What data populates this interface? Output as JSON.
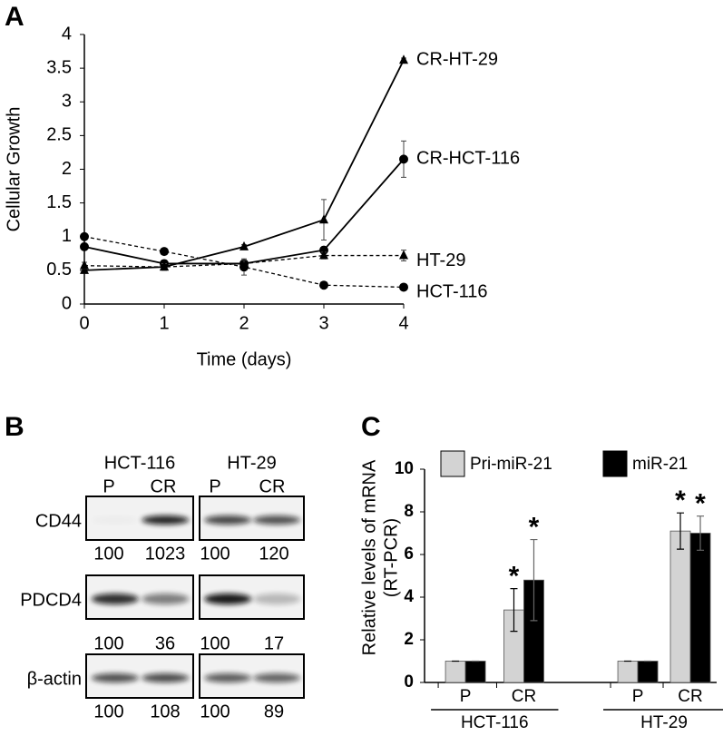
{
  "panel_labels": [
    "A",
    "B",
    "C"
  ],
  "chart_data": [
    {
      "type": "line",
      "ylabel": "Cellular Growth",
      "xlabel": "Time (days)",
      "x": [
        0,
        1,
        2,
        3,
        4
      ],
      "xlim": [
        0,
        4
      ],
      "xticks": [
        0,
        1,
        2,
        3,
        4
      ],
      "ylim": [
        0,
        4
      ],
      "yticks": [
        0,
        0.5,
        1,
        1.5,
        2,
        2.5,
        3,
        3.5,
        4
      ],
      "series": [
        {
          "name": "CR-HT-29",
          "color": "#000000",
          "marker": "triangle",
          "line": "solid",
          "values": [
            0.5,
            0.55,
            0.85,
            1.25,
            3.62
          ],
          "errors": [
            0.03,
            0.03,
            0.03,
            0.3,
            0.03
          ]
        },
        {
          "name": "CR-HCT-116",
          "color": "#000000",
          "marker": "circle",
          "line": "solid",
          "values": [
            0.85,
            0.6,
            0.6,
            0.8,
            2.15
          ],
          "errors": [
            0.05,
            0.05,
            0.05,
            0.05,
            0.27
          ]
        },
        {
          "name": "HT-29",
          "color": "#000000",
          "marker": "triangle",
          "line": "dashed",
          "values": [
            0.57,
            0.55,
            0.6,
            0.72,
            0.72
          ],
          "errors": [
            0.05,
            0.05,
            0.05,
            0.05,
            0.08
          ]
        },
        {
          "name": "HCT-116",
          "color": "#000000",
          "marker": "circle",
          "line": "dashed",
          "values": [
            1.0,
            0.78,
            0.55,
            0.28,
            0.25
          ],
          "errors": [
            0.02,
            0.03,
            0.12,
            0.03,
            0.03
          ]
        }
      ]
    },
    {
      "type": "bar",
      "ylabel": [
        "Relative levels of mRNA",
        "(RT-PCR)"
      ],
      "categories": [
        "P",
        "CR",
        "P",
        "CR"
      ],
      "groups": [
        "HCT-116",
        "HT-29"
      ],
      "ylim": [
        0,
        10
      ],
      "yticks": [
        0,
        2,
        4,
        6,
        8,
        10
      ],
      "legend": "top",
      "series": [
        {
          "name": "Pri-miR-21",
          "color": "#d3d3d3",
          "values": [
            1,
            3.4,
            1,
            7.1
          ],
          "errors": [
            0,
            1.0,
            0,
            0.85
          ],
          "significance": [
            null,
            "*",
            null,
            "*"
          ]
        },
        {
          "name": "miR-21",
          "color": "#000000",
          "values": [
            1,
            4.8,
            1,
            7.0
          ],
          "errors": [
            0,
            1.9,
            0,
            0.8
          ],
          "significance": [
            null,
            "*",
            null,
            "*"
          ]
        }
      ]
    }
  ],
  "blot": {
    "groups": [
      "HCT-116",
      "HT-29"
    ],
    "lanes": [
      "P",
      "CR",
      "P",
      "CR"
    ],
    "rows": [
      {
        "label": "CD44",
        "values": [
          100,
          1023,
          100,
          120
        ]
      },
      {
        "label": "PDCD4",
        "values": [
          100,
          36,
          100,
          17
        ]
      },
      {
        "label": "β-actin",
        "values": [
          100,
          108,
          100,
          89
        ]
      }
    ]
  }
}
